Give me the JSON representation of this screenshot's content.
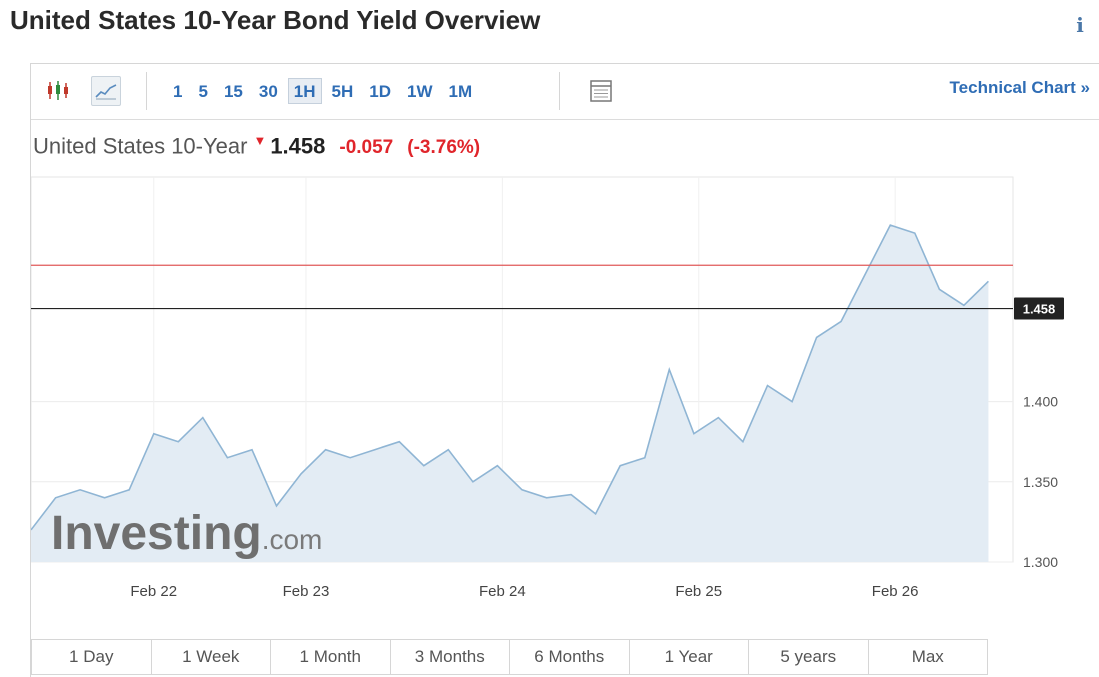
{
  "page": {
    "title": "United States 10-Year Bond Yield Overview",
    "info_glyph": "i"
  },
  "toolbar": {
    "icons": [
      "candlestick-icon",
      "area-chart-icon",
      "table-icon"
    ],
    "intervals": [
      {
        "label": "1",
        "active": false
      },
      {
        "label": "5",
        "active": false
      },
      {
        "label": "15",
        "active": false
      },
      {
        "label": "30",
        "active": false
      },
      {
        "label": "1H",
        "active": true
      },
      {
        "label": "5H",
        "active": false
      },
      {
        "label": "1D",
        "active": false
      },
      {
        "label": "1W",
        "active": false
      },
      {
        "label": "1M",
        "active": false
      }
    ],
    "technical_link": "Technical Chart »"
  },
  "quote": {
    "name": "United States 10-Year",
    "direction": "down",
    "last": "1.458",
    "change": "-0.057",
    "change_pct": "(-3.76%)"
  },
  "colors": {
    "down": "#e0252b",
    "link": "#2f6db5",
    "area_fill": "#e3ecf4",
    "line": "#8fb5d4",
    "ref_line": "#e05a5a",
    "current_line": "#222222"
  },
  "chart_data": {
    "type": "area",
    "x": [
      0,
      0.125,
      0.25,
      0.375,
      0.5,
      0.625,
      0.75,
      0.875,
      1,
      1.125,
      1.25,
      1.375,
      1.5,
      1.625,
      1.75,
      1.875,
      2,
      2.125,
      2.25,
      2.375,
      2.5,
      2.625,
      2.75,
      2.875,
      3,
      3.125,
      3.25,
      3.375,
      3.5,
      3.625,
      3.75,
      3.875,
      4,
      4.125,
      4.25,
      4.375,
      4.5,
      4.625,
      4.75,
      4.875
    ],
    "values": [
      1.32,
      1.34,
      1.345,
      1.34,
      1.345,
      1.38,
      1.375,
      1.39,
      1.365,
      1.37,
      1.335,
      1.355,
      1.37,
      1.365,
      1.37,
      1.375,
      1.36,
      1.37,
      1.35,
      1.36,
      1.345,
      1.34,
      1.342,
      1.33,
      1.36,
      1.365,
      1.42,
      1.38,
      1.39,
      1.375,
      1.41,
      1.4,
      1.44,
      1.45,
      1.48,
      1.51,
      1.505,
      1.47,
      1.46,
      1.475
    ],
    "x_tick_labels": [
      {
        "x": 0.625,
        "label": "Feb 22"
      },
      {
        "x": 1.4,
        "label": "Feb 23"
      },
      {
        "x": 2.4,
        "label": "Feb 24"
      },
      {
        "x": 3.4,
        "label": "Feb 25"
      },
      {
        "x": 4.4,
        "label": "Feb 26"
      }
    ],
    "y_ticks": [
      1.3,
      1.35,
      1.4
    ],
    "y_tick_labels": [
      "1.300",
      "1.350",
      "1.400"
    ],
    "ylim": [
      1.3,
      1.54
    ],
    "xlim": [
      0,
      5
    ],
    "reference_line": 1.485,
    "current_value": 1.458,
    "current_label": "1.458",
    "grid": true,
    "watermark": {
      "brand": "Investing",
      "suffix": ".com"
    }
  },
  "ranges": [
    "1 Day",
    "1 Week",
    "1 Month",
    "3 Months",
    "6 Months",
    "1 Year",
    "5 years",
    "Max"
  ]
}
